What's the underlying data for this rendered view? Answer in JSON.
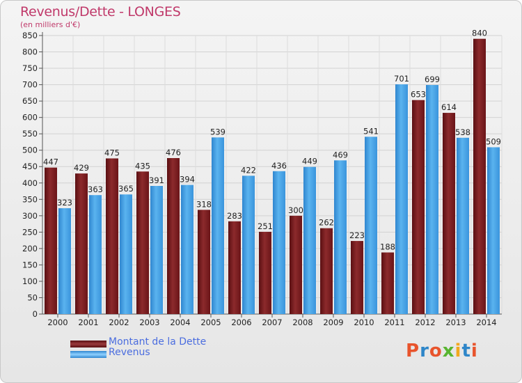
{
  "header": {
    "title": "Revenus/Dette - LONGES",
    "subtitle": "(en milliers d'€)"
  },
  "logo": {
    "text": "Proxiti",
    "colors": [
      "#e8542c",
      "#2e86c9",
      "#e8542c",
      "#58b530",
      "#f2a81d",
      "#2e86c9",
      "#e8542c"
    ]
  },
  "chart_data": {
    "type": "bar",
    "categories": [
      "2000",
      "2001",
      "2002",
      "2003",
      "2004",
      "2005",
      "2006",
      "2007",
      "2008",
      "2009",
      "2010",
      "2011",
      "2012",
      "2013",
      "2014"
    ],
    "series": [
      {
        "name": "Montant de la Dette",
        "color": "#7a1a1c",
        "values": [
          447,
          429,
          475,
          435,
          476,
          318,
          283,
          251,
          300,
          262,
          223,
          188,
          653,
          614,
          840
        ]
      },
      {
        "name": "Revenus",
        "color": "#3c9be0",
        "values": [
          323,
          363,
          365,
          391,
          394,
          539,
          422,
          436,
          449,
          469,
          541,
          701,
          699,
          538,
          509
        ]
      }
    ],
    "title": "Revenus/Dette - LONGES",
    "ylabel": "(en milliers d'€)",
    "ylim": [
      0,
      850
    ],
    "yticks": [
      0,
      50,
      100,
      150,
      200,
      250,
      300,
      350,
      400,
      450,
      500,
      550,
      600,
      650,
      700,
      750,
      800,
      850
    ],
    "grid": true,
    "legend": "bottom-left"
  }
}
